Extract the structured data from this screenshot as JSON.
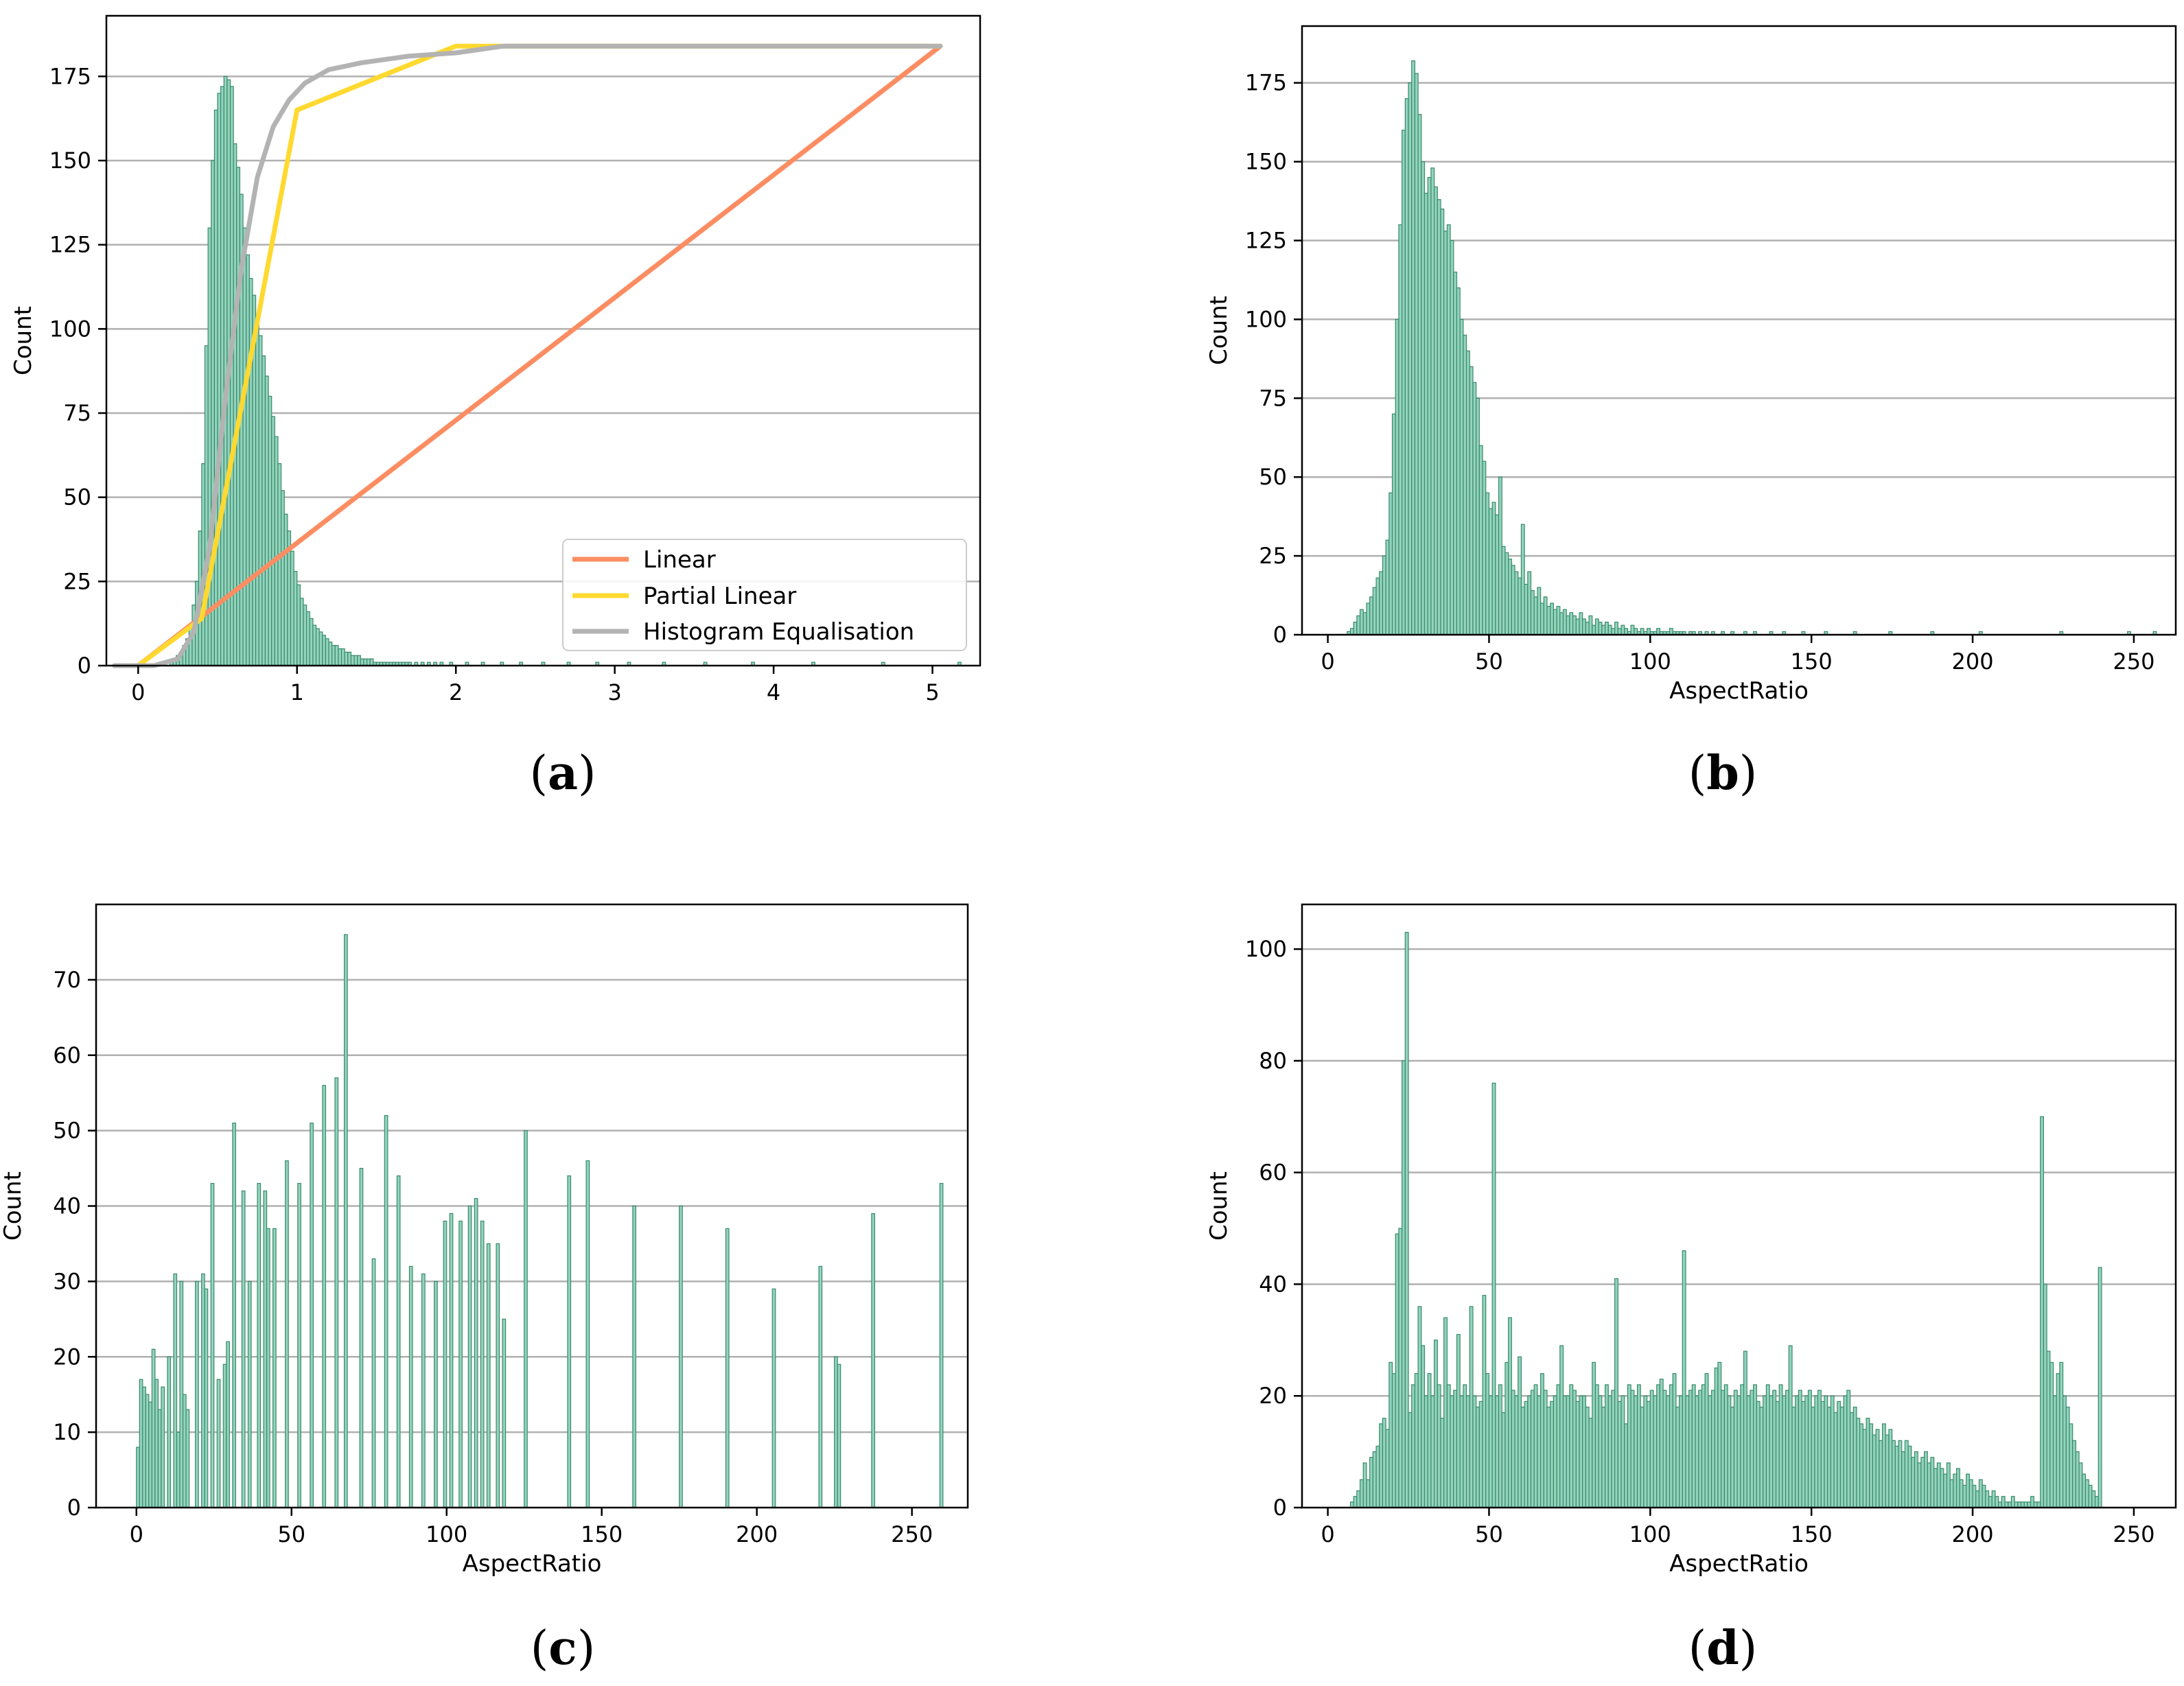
{
  "figure": {
    "colors": {
      "bar_fill": "#93d3bd",
      "bar_edge": "#3a8a6c",
      "grid": "#b0b0b0",
      "linear": "#fc8d62",
      "partial_linear": "#ffd92f",
      "hist_eq": "#b3b3b3"
    }
  },
  "chart_data": [
    {
      "id": "a",
      "caption": "a",
      "type": "bar",
      "title": "",
      "xlabel": "",
      "ylabel": "Count",
      "xlim": [
        -0.2,
        5.3
      ],
      "ylim": [
        0,
        193
      ],
      "xticks": [
        0,
        1,
        2,
        3,
        4,
        5
      ],
      "yticks": [
        0,
        25,
        50,
        75,
        100,
        125,
        150,
        175
      ],
      "grid": "y",
      "histogram": {
        "start": 0.0,
        "width": 0.02,
        "counts": [
          0,
          0,
          0,
          0,
          0,
          0,
          0,
          0,
          0,
          0,
          1,
          2,
          3,
          4,
          6,
          8,
          12,
          18,
          25,
          40,
          60,
          95,
          130,
          150,
          165,
          170,
          172,
          175,
          174,
          172,
          155,
          148,
          140,
          130,
          122,
          115,
          110,
          104,
          98,
          92,
          86,
          80,
          74,
          68,
          60,
          52,
          45,
          40,
          34,
          28,
          24,
          20,
          18,
          16,
          14,
          12,
          11,
          10,
          9,
          8,
          7,
          6,
          6,
          5,
          5,
          4,
          4,
          3,
          3,
          3,
          2,
          2,
          2,
          2,
          1,
          1,
          1,
          1,
          1,
          1,
          1,
          1,
          1,
          1,
          1,
          1,
          0,
          1,
          0,
          1,
          0,
          1,
          0,
          1,
          0,
          1,
          0,
          0,
          1,
          0,
          0,
          0,
          0,
          1,
          0,
          0,
          0,
          0,
          1,
          0,
          0,
          0,
          0,
          0,
          1,
          0,
          0,
          0,
          0,
          0,
          1,
          0,
          0,
          0,
          0,
          0,
          0,
          1,
          0,
          0,
          0,
          0,
          0,
          0,
          0,
          1,
          0,
          0,
          0,
          0,
          0,
          0,
          0,
          0,
          1,
          0,
          0,
          0,
          0,
          0,
          0,
          0,
          0,
          0,
          1,
          0,
          0,
          0,
          0,
          0,
          0,
          0,
          0,
          0,
          0,
          1,
          0,
          0,
          0,
          0,
          0,
          0,
          0,
          0,
          0,
          0,
          0,
          0,
          1,
          0,
          0,
          0,
          0,
          0,
          0,
          0,
          0,
          0,
          0,
          0,
          0,
          0,
          0,
          1,
          0,
          0,
          0,
          0,
          0,
          0,
          0,
          0,
          0,
          0,
          0,
          0,
          0,
          0,
          0,
          0,
          0,
          0,
          1,
          0,
          0,
          0,
          0,
          0,
          0,
          0,
          0,
          0,
          0,
          0,
          0,
          0,
          0,
          0,
          0,
          0,
          0,
          0,
          0,
          0,
          1,
          0,
          0,
          0,
          0,
          0,
          0,
          0,
          0,
          0,
          0,
          0,
          0,
          0,
          0,
          0,
          0,
          0,
          0,
          0,
          0,
          0,
          0,
          0,
          1
        ]
      },
      "lines": [
        {
          "name": "Linear",
          "color_key": "linear",
          "x": [
            0,
            5.05
          ],
          "y": [
            0,
            184
          ]
        },
        {
          "name": "Partial Linear",
          "color_key": "partial_linear",
          "x": [
            0,
            0.4,
            1.0,
            2.0,
            5.05
          ],
          "y": [
            0,
            14,
            165,
            184,
            184
          ]
        },
        {
          "name": "Histogram Equalisation",
          "color_key": "hist_eq",
          "x": [
            -0.15,
            0.1,
            0.25,
            0.35,
            0.45,
            0.55,
            0.65,
            0.75,
            0.85,
            0.95,
            1.05,
            1.2,
            1.4,
            1.7,
            2.0,
            2.3,
            5.05
          ],
          "y": [
            0,
            0,
            2,
            10,
            35,
            80,
            118,
            145,
            160,
            168,
            173,
            177,
            179,
            181,
            182,
            184,
            184
          ]
        }
      ],
      "legend": {
        "position": "lower-right",
        "entries": [
          "Linear",
          "Partial Linear",
          "Histogram Equalisation"
        ]
      }
    },
    {
      "id": "b",
      "caption": "b",
      "type": "bar",
      "title": "",
      "xlabel": "AspectRatio",
      "ylabel": "Count",
      "xlim": [
        -8,
        263
      ],
      "ylim": [
        0,
        193
      ],
      "xticks": [
        0,
        50,
        100,
        150,
        200,
        250
      ],
      "yticks": [
        0,
        25,
        50,
        75,
        100,
        125,
        150,
        175
      ],
      "grid": "y",
      "histogram": {
        "start": 0,
        "width": 1,
        "counts": [
          0,
          0,
          0,
          0,
          0,
          0,
          1,
          2,
          4,
          6,
          8,
          7,
          10,
          12,
          15,
          18,
          20,
          25,
          30,
          45,
          70,
          100,
          130,
          160,
          170,
          175,
          182,
          178,
          165,
          150,
          140,
          145,
          148,
          142,
          138,
          135,
          128,
          130,
          125,
          115,
          110,
          100,
          95,
          90,
          85,
          80,
          75,
          60,
          55,
          45,
          40,
          42,
          38,
          50,
          28,
          26,
          24,
          22,
          20,
          18,
          35,
          16,
          20,
          14,
          12,
          15,
          10,
          12,
          9,
          10,
          8,
          9,
          7,
          8,
          6,
          7,
          6,
          5,
          7,
          5,
          4,
          6,
          3,
          5,
          4,
          3,
          4,
          3,
          2,
          4,
          2,
          3,
          2,
          1,
          3,
          2,
          1,
          2,
          1,
          2,
          1,
          1,
          2,
          1,
          1,
          1,
          2,
          1,
          1,
          1,
          1,
          0,
          1,
          1,
          0,
          1,
          0,
          1,
          0,
          1,
          0,
          0,
          1,
          0,
          0,
          1,
          0,
          0,
          0,
          1,
          0,
          0,
          1,
          0,
          0,
          0,
          0,
          1,
          0,
          0,
          0,
          1,
          0,
          0,
          0,
          0,
          0,
          1,
          0,
          0,
          0,
          0,
          0,
          0,
          1,
          0,
          0,
          0,
          0,
          0,
          0,
          0,
          0,
          1,
          0,
          0,
          0,
          0,
          0,
          0,
          0,
          0,
          0,
          0,
          1,
          0,
          0,
          0,
          0,
          0,
          0,
          0,
          0,
          0,
          0,
          0,
          0,
          1,
          0,
          0,
          0,
          0,
          0,
          0,
          0,
          0,
          0,
          0,
          0,
          0,
          0,
          0,
          1,
          0,
          0,
          0,
          0,
          0,
          0,
          0,
          0,
          0,
          0,
          0,
          0,
          0,
          0,
          0,
          0,
          0,
          0,
          0,
          0,
          0,
          0,
          0,
          0,
          1,
          0,
          0,
          0,
          0,
          0,
          0,
          0,
          0,
          0,
          0,
          0,
          0,
          0,
          0,
          0,
          0,
          0,
          0,
          0,
          0,
          1,
          0,
          0,
          0,
          0,
          0,
          0,
          0,
          1,
          0,
          0,
          0,
          0,
          0,
          0,
          0
        ]
      }
    },
    {
      "id": "c",
      "caption": "c",
      "type": "bar",
      "title": "",
      "xlabel": "AspectRatio",
      "ylabel": "Count",
      "xlim": [
        -13,
        268
      ],
      "ylim": [
        0,
        80
      ],
      "xticks": [
        0,
        50,
        100,
        150,
        200,
        250
      ],
      "yticks": [
        0,
        10,
        20,
        30,
        40,
        50,
        60,
        70
      ],
      "grid": "y",
      "histogram": {
        "start": 0,
        "width": 1,
        "counts": [
          8,
          17,
          16,
          15,
          14,
          21,
          17,
          13,
          16,
          0,
          20,
          0,
          31,
          10,
          30,
          15,
          13,
          0,
          0,
          30,
          0,
          31,
          29,
          0,
          43,
          0,
          17,
          0,
          19,
          22,
          0,
          51,
          0,
          0,
          42,
          0,
          30,
          0,
          0,
          43,
          0,
          42,
          37,
          0,
          37,
          0,
          0,
          0,
          46,
          0,
          0,
          0,
          43,
          0,
          0,
          0,
          51,
          0,
          0,
          0,
          56,
          0,
          0,
          0,
          57,
          0,
          0,
          76,
          0,
          0,
          0,
          0,
          45,
          0,
          0,
          0,
          33,
          0,
          0,
          0,
          52,
          0,
          0,
          0,
          44,
          0,
          0,
          0,
          32,
          0,
          0,
          0,
          31,
          0,
          0,
          0,
          30,
          0,
          0,
          38,
          0,
          39,
          0,
          0,
          38,
          0,
          0,
          40,
          0,
          41,
          0,
          38,
          0,
          35,
          0,
          0,
          35,
          0,
          25,
          0,
          0,
          0,
          0,
          0,
          0,
          50,
          0,
          0,
          0,
          0,
          0,
          0,
          0,
          0,
          0,
          0,
          0,
          0,
          0,
          44,
          0,
          0,
          0,
          0,
          0,
          46,
          0,
          0,
          0,
          0,
          0,
          0,
          0,
          0,
          0,
          0,
          0,
          0,
          0,
          0,
          40,
          0,
          0,
          0,
          0,
          0,
          0,
          0,
          0,
          0,
          0,
          0,
          0,
          0,
          0,
          40,
          0,
          0,
          0,
          0,
          0,
          0,
          0,
          0,
          0,
          0,
          0,
          0,
          0,
          0,
          37,
          0,
          0,
          0,
          0,
          0,
          0,
          0,
          0,
          0,
          0,
          0,
          0,
          0,
          0,
          29,
          0,
          0,
          0,
          0,
          0,
          0,
          0,
          0,
          0,
          0,
          0,
          0,
          0,
          0,
          32,
          0,
          0,
          0,
          0,
          20,
          19,
          0,
          0,
          0,
          0,
          0,
          0,
          0,
          0,
          0,
          0,
          39,
          0,
          0,
          0,
          0,
          0,
          0,
          0,
          0,
          0,
          0,
          0,
          0,
          0,
          0,
          0,
          0,
          0,
          0,
          0,
          0,
          0,
          43
        ]
      }
    },
    {
      "id": "d",
      "caption": "d",
      "type": "bar",
      "title": "",
      "xlabel": "AspectRatio",
      "ylabel": "Count",
      "xlim": [
        -8,
        263
      ],
      "ylim": [
        0,
        108
      ],
      "xticks": [
        0,
        50,
        100,
        150,
        200,
        250
      ],
      "yticks": [
        0,
        20,
        40,
        60,
        80,
        100
      ],
      "grid": "y",
      "histogram": {
        "start": 0,
        "width": 1,
        "counts": [
          0,
          0,
          0,
          0,
          0,
          0,
          0,
          1,
          2,
          3,
          5,
          8,
          5,
          9,
          10,
          11,
          15,
          16,
          14,
          26,
          24,
          49,
          50,
          80,
          103,
          17,
          22,
          24,
          36,
          29,
          20,
          24,
          20,
          30,
          22,
          16,
          34,
          22,
          20,
          21,
          31,
          20,
          22,
          20,
          36,
          20,
          18,
          19,
          38,
          24,
          20,
          76,
          20,
          22,
          17,
          26,
          34,
          21,
          20,
          27,
          18,
          19,
          20,
          21,
          22,
          20,
          24,
          21,
          18,
          19,
          20,
          22,
          29,
          20,
          20,
          22,
          21,
          19,
          20,
          20,
          18,
          16,
          26,
          22,
          20,
          18,
          22,
          20,
          21,
          41,
          19,
          20,
          15,
          22,
          21,
          20,
          22,
          18,
          20,
          19,
          21,
          20,
          22,
          23,
          21,
          20,
          22,
          24,
          18,
          20,
          46,
          20,
          21,
          22,
          20,
          21,
          22,
          24,
          20,
          21,
          25,
          26,
          21,
          22,
          20,
          18,
          21,
          20,
          22,
          28,
          20,
          21,
          22,
          19,
          18,
          20,
          22,
          20,
          21,
          19,
          22,
          20,
          21,
          29,
          18,
          20,
          21,
          19,
          20,
          21,
          18,
          20,
          21,
          19,
          20,
          18,
          20,
          17,
          19,
          18,
          20,
          21,
          17,
          18,
          16,
          15,
          14,
          16,
          15,
          13,
          14,
          12,
          15,
          13,
          14,
          12,
          11,
          12,
          10,
          12,
          11,
          9,
          10,
          8,
          9,
          10,
          8,
          9,
          7,
          8,
          7,
          6,
          8,
          5,
          6,
          7,
          5,
          4,
          6,
          5,
          4,
          3,
          5,
          4,
          3,
          2,
          3,
          2,
          1,
          2,
          1,
          1,
          2,
          1,
          1,
          1,
          1,
          1,
          2,
          1,
          1,
          70,
          40,
          28,
          26,
          20,
          24,
          26,
          20,
          18,
          15,
          12,
          10,
          8,
          6,
          5,
          4,
          3,
          2,
          43
        ]
      }
    }
  ]
}
